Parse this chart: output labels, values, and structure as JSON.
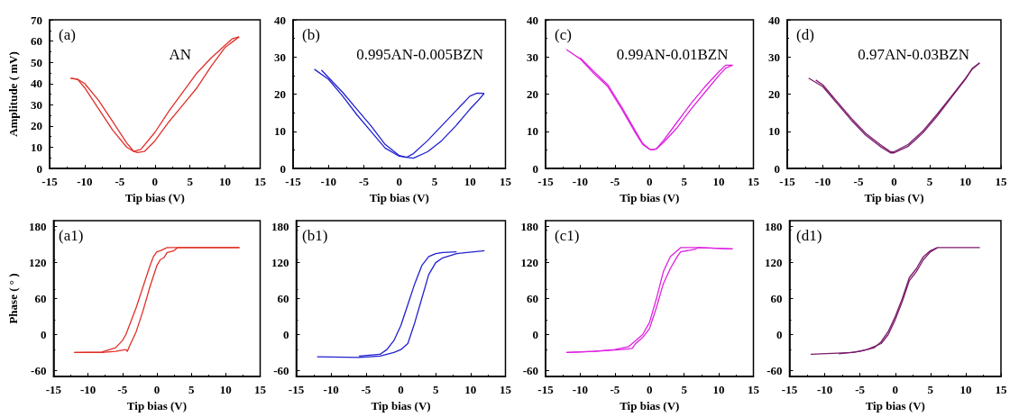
{
  "chart_data": [
    {
      "type": "line",
      "ylabel": "Amplitude ( mV)",
      "xlabel": "Tip bias (V)",
      "annotations": [
        "(a)",
        "AN"
      ],
      "marker": "none",
      "xlim": [
        -15,
        15
      ],
      "xticks": [
        -15,
        -10,
        -5,
        0,
        5,
        10,
        15
      ],
      "ylim": [
        0,
        70
      ],
      "yticks": [
        0,
        10,
        20,
        30,
        40,
        50,
        60,
        70
      ],
      "series": [
        {
          "color": "#e0302a",
          "x": [
            -12,
            -11,
            -10,
            -8,
            -6,
            -4,
            -3,
            -2,
            0,
            2,
            4,
            6,
            8,
            10,
            11,
            12
          ],
          "values": [
            42.5,
            42,
            38,
            28,
            18,
            10,
            8,
            9,
            17,
            27,
            36,
            45,
            52,
            58,
            61,
            62
          ]
        },
        {
          "color": "#e0302a",
          "x": [
            12,
            10,
            8,
            6,
            4,
            2,
            0,
            -1.5,
            -2.5,
            -3,
            -4,
            -6,
            -8,
            -10,
            -11,
            -12
          ],
          "values": [
            62,
            57,
            48,
            38,
            30,
            22,
            13,
            8,
            7.5,
            8,
            12,
            22,
            32,
            40,
            42,
            42.5
          ]
        }
      ]
    },
    {
      "type": "line",
      "xlabel": "Tip bias (V)",
      "annotations": [
        "(b)",
        "0.995AN-0.005BZN"
      ],
      "marker": "none",
      "xlim": [
        -15,
        15
      ],
      "xticks": [
        -15,
        -10,
        -5,
        0,
        5,
        10,
        15
      ],
      "ylim": [
        0,
        40
      ],
      "yticks": [
        0,
        10,
        20,
        30,
        40
      ],
      "series": [
        {
          "color": "#2020d0",
          "x": [
            -12,
            -10,
            -8,
            -6,
            -4,
            -2,
            0,
            1,
            2,
            4,
            6,
            8,
            10,
            11,
            12
          ],
          "values": [
            26.7,
            24,
            19.5,
            14.5,
            10,
            5.5,
            3.3,
            3,
            4,
            7.5,
            11.5,
            15.5,
            19.5,
            20.3,
            20.2
          ]
        },
        {
          "color": "#2020d0",
          "x": [
            12,
            11,
            10,
            8,
            6,
            4,
            2,
            1,
            0,
            -2,
            -4,
            -6,
            -8,
            -10,
            -11
          ],
          "values": [
            20.2,
            18,
            16,
            11.5,
            7.5,
            4.5,
            2.8,
            3,
            3.5,
            6.5,
            11.5,
            16,
            20.5,
            24.5,
            26.5
          ]
        }
      ]
    },
    {
      "type": "line",
      "xlabel": "Tip bias (V)",
      "annotations": [
        "(c)",
        "0.99AN-0.01BZN"
      ],
      "marker": "none",
      "xlim": [
        -15,
        15
      ],
      "xticks": [
        -15,
        -10,
        -5,
        0,
        5,
        10,
        15
      ],
      "ylim": [
        0,
        40
      ],
      "yticks": [
        0,
        10,
        20,
        30,
        40
      ],
      "series": [
        {
          "color": "#e020e0",
          "x": [
            -12,
            -10,
            -8,
            -6,
            -4,
            -2,
            -1,
            0,
            0.5,
            1,
            2,
            4,
            6,
            8,
            10,
            11,
            12
          ],
          "values": [
            32,
            29.5,
            25.5,
            22,
            16,
            9.5,
            6.5,
            5.2,
            5,
            5.3,
            7.5,
            12.5,
            17.5,
            22,
            26,
            27.8,
            27.8
          ]
        },
        {
          "color": "#e020e0",
          "x": [
            12,
            11,
            10,
            8,
            6,
            4,
            2,
            1,
            0.5,
            0,
            -1,
            -2,
            -4,
            -6,
            -8,
            -10
          ],
          "values": [
            27.8,
            27,
            25,
            20.5,
            16,
            11,
            7,
            5.3,
            5,
            5.2,
            6.8,
            10,
            16.5,
            22.5,
            26,
            29.8
          ]
        }
      ]
    },
    {
      "type": "line",
      "xlabel": "Tip bias (V)",
      "annotations": [
        "(d)",
        "0.97AN-0.03BZN"
      ],
      "marker": "none",
      "xlim": [
        -15,
        15
      ],
      "xticks": [
        -15,
        -10,
        -5,
        0,
        5,
        10,
        15
      ],
      "ylim": [
        0,
        40
      ],
      "yticks": [
        0,
        10,
        20,
        30,
        40
      ],
      "series": [
        {
          "color": "#7a1a6a",
          "x": [
            -12,
            -10,
            -8,
            -6,
            -4,
            -2,
            -0.5,
            0,
            2,
            4,
            6,
            8,
            10,
            11,
            12
          ],
          "values": [
            24.3,
            22,
            17.5,
            13,
            9,
            6,
            4.2,
            4.2,
            6,
            9.5,
            14,
            19,
            24,
            27,
            28.4
          ]
        },
        {
          "color": "#7a1a6a",
          "x": [
            12,
            11,
            10,
            8,
            6,
            4,
            2,
            0,
            -0.5,
            -2,
            -4,
            -6,
            -8,
            -10,
            -11
          ],
          "values": [
            28.4,
            26.8,
            24.2,
            19.3,
            14.5,
            10,
            6.5,
            4.5,
            4.5,
            6.5,
            9.5,
            13.5,
            18,
            22.5,
            23.8
          ]
        }
      ]
    },
    {
      "type": "line",
      "ylabel": "Phase ( ° )",
      "xlabel": "Tip bias (V)",
      "annotations": [
        "(a1)"
      ],
      "marker": "none",
      "xlim": [
        -15,
        15
      ],
      "xticks": [
        -15,
        -10,
        -5,
        0,
        5,
        10,
        15
      ],
      "ylim": [
        -70,
        190
      ],
      "yticks": [
        -60,
        0,
        60,
        120,
        180
      ],
      "series": [
        {
          "color": "#e0302a",
          "x": [
            -12,
            -8,
            -6,
            -4.5,
            -4.3,
            -4,
            -3,
            -2,
            -1,
            0,
            0.5,
            1,
            1.5,
            2.5,
            3,
            5,
            12
          ],
          "values": [
            -30,
            -30,
            -28,
            -25,
            -28,
            -20,
            5,
            40,
            80,
            115,
            125,
            128,
            137,
            140,
            145,
            145,
            145
          ]
        },
        {
          "color": "#e0302a",
          "x": [
            12,
            5,
            1.5,
            0.5,
            0,
            -0.5,
            -1,
            -2,
            -3,
            -4,
            -4.5,
            -5,
            -6,
            -8,
            -12
          ],
          "values": [
            145,
            145,
            145,
            140,
            138,
            130,
            115,
            80,
            45,
            15,
            0,
            -10,
            -22,
            -29,
            -30
          ]
        }
      ]
    },
    {
      "type": "line",
      "xlabel": "Tip bias (V)",
      "annotations": [
        "(b1)"
      ],
      "marker": "none",
      "xlim": [
        -15,
        15
      ],
      "xticks": [
        -15,
        -10,
        -5,
        0,
        5,
        10,
        15
      ],
      "ylim": [
        -70,
        190
      ],
      "yticks": [
        -60,
        0,
        60,
        120,
        180
      ],
      "series": [
        {
          "color": "#2020d0",
          "x": [
            -12,
            -6,
            -3,
            -1,
            0,
            1,
            2,
            3,
            4,
            5,
            6,
            8,
            12
          ],
          "values": [
            -37,
            -38,
            -36,
            -30,
            -25,
            -15,
            20,
            60,
            100,
            120,
            128,
            135,
            140
          ]
        },
        {
          "color": "#2020d0",
          "x": [
            8,
            6,
            5,
            4,
            3,
            2,
            1,
            0,
            -1,
            -2,
            -3,
            -6
          ],
          "values": [
            138,
            137,
            135,
            130,
            115,
            85,
            50,
            15,
            -10,
            -25,
            -33,
            -36
          ]
        }
      ]
    },
    {
      "type": "line",
      "xlabel": "Tip bias (V)",
      "annotations": [
        "(c1)"
      ],
      "marker": "none",
      "xlim": [
        -15,
        15
      ],
      "xticks": [
        -15,
        -10,
        -5,
        0,
        5,
        10,
        15
      ],
      "ylim": [
        -70,
        190
      ],
      "yticks": [
        -60,
        0,
        60,
        120,
        180
      ],
      "series": [
        {
          "color": "#e020e0",
          "x": [
            -12,
            -8,
            -4,
            -2.5,
            -2,
            -1,
            0,
            1,
            2,
            3,
            4,
            4.5,
            6.5,
            7,
            12
          ],
          "values": [
            -30,
            -28,
            -25,
            -23,
            -15,
            -5,
            10,
            45,
            85,
            110,
            130,
            138,
            142,
            145,
            143
          ]
        },
        {
          "color": "#e020e0",
          "x": [
            12,
            7,
            4.5,
            3,
            2,
            1,
            0,
            -1,
            -2,
            -3,
            -5,
            -8,
            -12
          ],
          "values": [
            143,
            145,
            145,
            130,
            105,
            60,
            20,
            0,
            -10,
            -20,
            -25,
            -28,
            -30
          ]
        }
      ]
    },
    {
      "type": "line",
      "xlabel": "Tip bias (V)",
      "annotations": [
        "(d1)"
      ],
      "marker": "none",
      "xlim": [
        -15,
        15
      ],
      "xticks": [
        -15,
        -10,
        -5,
        0,
        5,
        10,
        15
      ],
      "ylim": [
        -70,
        190
      ],
      "yticks": [
        -60,
        0,
        60,
        120,
        180
      ],
      "series": [
        {
          "color": "#7a1a6a",
          "x": [
            -12,
            -6,
            -4,
            -2,
            -1,
            0,
            1,
            2,
            3,
            4,
            5,
            6,
            12
          ],
          "values": [
            -33,
            -30,
            -25,
            -15,
            0,
            25,
            55,
            90,
            105,
            125,
            138,
            145,
            145
          ]
        },
        {
          "color": "#7a1a6a",
          "x": [
            6,
            5,
            4,
            3,
            2,
            1,
            0,
            -1,
            -2,
            -3,
            -5,
            -8
          ],
          "values": [
            145,
            140,
            130,
            110,
            95,
            60,
            30,
            5,
            -12,
            -22,
            -28,
            -32
          ]
        }
      ]
    }
  ]
}
